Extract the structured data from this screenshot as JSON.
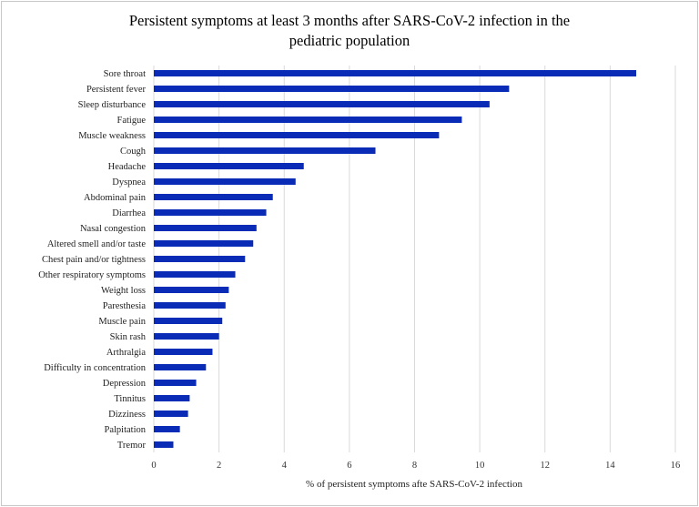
{
  "chart_data": {
    "type": "bar",
    "orientation": "horizontal",
    "title_lines": [
      "Persistent symptoms at least 3 months after SARS-CoV-2 infection in the",
      "pediatric population"
    ],
    "xlabel": "% of persistent symptoms afte SARS-CoV-2 infection",
    "ylabel": "",
    "xlim": [
      0,
      16
    ],
    "xticks": [
      0,
      2,
      4,
      6,
      8,
      10,
      12,
      14,
      16
    ],
    "grid": true,
    "legend": "none",
    "bar_color": "#0a2bb5",
    "categories": [
      "Sore throat",
      "Persistent fever",
      "Sleep disturbance",
      "Fatigue",
      "Muscle weakness",
      "Cough",
      "Headache",
      "Dyspnea",
      "Abdominal pain",
      "Diarrhea",
      "Nasal congestion",
      "Altered smell and/or taste",
      "Chest pain and/or tightness",
      "Other respiratory symptoms",
      "Weight loss",
      "Paresthesia",
      "Muscle pain",
      "Skin rash",
      "Arthralgia",
      "Difficulty in concentration",
      "Depression",
      "Tinnitus",
      "Dizziness",
      "Palpitation",
      "Tremor"
    ],
    "values": [
      14.8,
      10.9,
      10.3,
      9.45,
      8.75,
      6.8,
      4.6,
      4.35,
      3.65,
      3.45,
      3.15,
      3.05,
      2.8,
      2.5,
      2.3,
      2.2,
      2.1,
      2.0,
      1.8,
      1.6,
      1.3,
      1.1,
      1.05,
      0.8,
      0.6
    ]
  }
}
